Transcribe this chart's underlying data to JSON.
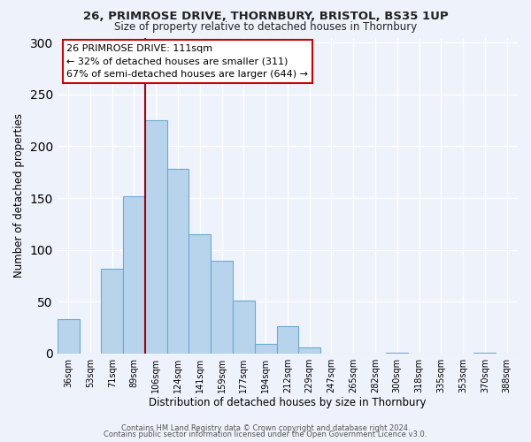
{
  "title1": "26, PRIMROSE DRIVE, THORNBURY, BRISTOL, BS35 1UP",
  "title2": "Size of property relative to detached houses in Thornbury",
  "xlabel": "Distribution of detached houses by size in Thornbury",
  "ylabel": "Number of detached properties",
  "bar_labels": [
    "36sqm",
    "53sqm",
    "71sqm",
    "89sqm",
    "106sqm",
    "124sqm",
    "141sqm",
    "159sqm",
    "177sqm",
    "194sqm",
    "212sqm",
    "229sqm",
    "247sqm",
    "265sqm",
    "282sqm",
    "300sqm",
    "318sqm",
    "335sqm",
    "353sqm",
    "370sqm",
    "388sqm"
  ],
  "bar_values": [
    33,
    0,
    82,
    152,
    225,
    178,
    115,
    89,
    51,
    9,
    26,
    6,
    0,
    0,
    0,
    1,
    0,
    0,
    0,
    1,
    0
  ],
  "bar_color": "#b8d4ed",
  "bar_edge_color": "#6aaad4",
  "vline_x": 3.5,
  "vline_color": "#aa0000",
  "annotation_title": "26 PRIMROSE DRIVE: 111sqm",
  "annotation_line1": "← 32% of detached houses are smaller (311)",
  "annotation_line2": "67% of semi-detached houses are larger (644) →",
  "annotation_box_color": "#ffffff",
  "annotation_box_edge": "#cc0000",
  "ylim": [
    0,
    305
  ],
  "footer1": "Contains HM Land Registry data © Crown copyright and database right 2024.",
  "footer2": "Contains public sector information licensed under the Open Government Licence v3.0.",
  "bg_color": "#eef2fb",
  "grid_color": "#ffffff"
}
